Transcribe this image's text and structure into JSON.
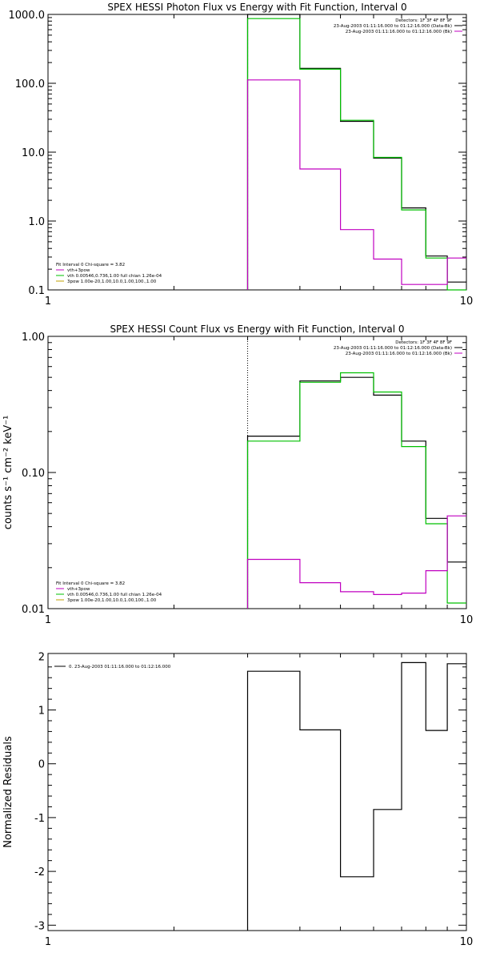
{
  "chart_data": [
    {
      "type": "line",
      "title": "SPEX HESSI Photon Flux vs Energy with Fit Function, Interval 0",
      "ylabel": "",
      "xlim": [
        1,
        10
      ],
      "ylim": [
        0.1,
        1000
      ],
      "xscale": "log",
      "yscale": "log",
      "xticks": [
        {
          "v": 1,
          "label": "1"
        },
        {
          "v": 10,
          "label": "10"
        }
      ],
      "yticks": [
        {
          "v": 1000,
          "label": "1000.0"
        },
        {
          "v": 100,
          "label": "100.0"
        },
        {
          "v": 10,
          "label": "10.0"
        },
        {
          "v": 1,
          "label": "1.0"
        },
        {
          "v": 0.1,
          "label": "0.1"
        }
      ],
      "vline": 3,
      "vline_style": "dashed",
      "vline_color": "#00c000",
      "legend_top": [
        "Detectors: 1F 3F 4F 8F 9F",
        "23-Aug-2003 01:11:16.000 to 01:12:16.000 (Data-Bk)",
        "23-Aug-2003 01:11:16.000 to 01:12:16.000 (Bk)"
      ],
      "legend_bottom": [
        {
          "text": "Fit Interval 0   Chi-square = 3.82",
          "color": "#000000"
        },
        {
          "text": "vth+3pow",
          "color": "#c000c0"
        },
        {
          "text": "vth 0.00546,0.736,1.00   full chian 1.26e-04",
          "color": "#00c000"
        },
        {
          "text": "3pow 1.00e-20,1.00,10.0,1.00,100.,1.00",
          "color": "#c0a000"
        }
      ],
      "series": [
        {
          "name": "Data-Bk",
          "color": "#000000",
          "edges": [
            3,
            4,
            5,
            6,
            7,
            8,
            9,
            10
          ],
          "values": [
            1000,
            165,
            28,
            8.2,
            1.55,
            0.31,
            0.13
          ]
        },
        {
          "name": "",
          "color": "#00c000",
          "edges": [
            3,
            4,
            5,
            6,
            7,
            8,
            9,
            10
          ],
          "values": [
            870,
            160,
            29,
            8.4,
            1.45,
            0.29,
            0.1
          ]
        },
        {
          "name": "Bk",
          "color": "#c000c0",
          "edges": [
            3,
            4,
            5,
            6,
            7,
            8,
            9,
            10
          ],
          "values": [
            112,
            5.7,
            0.75,
            0.28,
            0.12,
            0.12,
            0.29
          ]
        }
      ]
    },
    {
      "type": "line",
      "title": "SPEX HESSI Count Flux vs Energy with Fit Function, Interval 0",
      "ylabel": "counts s⁻¹ cm⁻² keV⁻¹",
      "xlim": [
        1,
        10
      ],
      "ylim": [
        0.01,
        1
      ],
      "xscale": "log",
      "yscale": "log",
      "xticks": [
        {
          "v": 1,
          "label": "1"
        },
        {
          "v": 10,
          "label": "10"
        }
      ],
      "yticks": [
        {
          "v": 1,
          "label": "1.00"
        },
        {
          "v": 0.1,
          "label": "0.10"
        },
        {
          "v": 0.01,
          "label": "0.01"
        }
      ],
      "vline": 3,
      "vline_style": "dotted",
      "vline_color": "#000000",
      "legend_top": [
        "Detectors: 1F 3F 4F 8F 9F",
        "23-Aug-2003 01:11:16.000 to 01:12:16.000 (Data-Bk)",
        "23-Aug-2003 01:11:16.000 to 01:12:16.000 (Bk)"
      ],
      "legend_bottom": [
        {
          "text": "Fit Interval 0   Chi-square = 3.82",
          "color": "#000000"
        },
        {
          "text": "vth+3pow",
          "color": "#c000c0"
        },
        {
          "text": "vth 0.00546,0.736,1.00   full chian 1.26e-04",
          "color": "#00c000"
        },
        {
          "text": "3pow 1.00e-20,1.00,10.0,1.00,100.,1.00",
          "color": "#c0a000"
        }
      ],
      "series": [
        {
          "name": "Data-Bk",
          "color": "#000000",
          "edges": [
            3,
            4,
            5,
            6,
            7,
            8,
            9,
            10
          ],
          "values": [
            0.185,
            0.47,
            0.5,
            0.37,
            0.17,
            0.046,
            0.022
          ]
        },
        {
          "name": "",
          "color": "#00c000",
          "edges": [
            3,
            4,
            5,
            6,
            7,
            8,
            9,
            10
          ],
          "values": [
            0.17,
            0.46,
            0.54,
            0.39,
            0.155,
            0.042,
            0.011
          ]
        },
        {
          "name": "Bk",
          "color": "#c000c0",
          "edges": [
            3,
            4,
            5,
            6,
            7,
            8,
            9,
            10
          ],
          "values": [
            0.023,
            0.0155,
            0.0133,
            0.0127,
            0.013,
            0.019,
            0.048
          ]
        }
      ]
    },
    {
      "type": "line",
      "title": "",
      "ylabel": "Normalized Residuals",
      "xlim": [
        1,
        10
      ],
      "ylim": [
        -3.1,
        2.05
      ],
      "xscale": "log",
      "yscale": "linear",
      "xticks": [
        {
          "v": 1,
          "label": "1"
        },
        {
          "v": 10,
          "label": "10"
        }
      ],
      "yticks": [
        {
          "v": 2,
          "label": "2"
        },
        {
          "v": 1,
          "label": "1"
        },
        {
          "v": 0,
          "label": "0"
        },
        {
          "v": -1,
          "label": "-1"
        },
        {
          "v": -2,
          "label": "-2"
        },
        {
          "v": -3,
          "label": "-3"
        }
      ],
      "legend_top_left": "0. 23-Aug-2003 01:11:16.000 to 01:12:16.000",
      "series": [
        {
          "name": "0. 23-Aug-2003 01:11:16.000 to 01:12:16.000",
          "color": "#000000",
          "edges": [
            3,
            4,
            5,
            6,
            7,
            8,
            9,
            10
          ],
          "values": [
            1.72,
            0.63,
            -2.1,
            -0.85,
            1.88,
            0.62,
            1.86
          ]
        }
      ]
    }
  ]
}
